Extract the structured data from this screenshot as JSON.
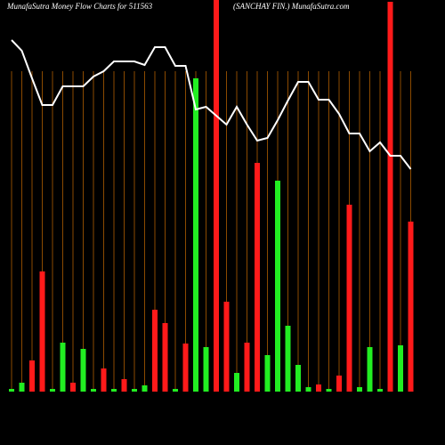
{
  "chart_data": {
    "type": "bar",
    "title": "MunafaSutra  Money Flow  Charts for 511563",
    "subtitle": "(SANCHAY FIN.) MunafaSutra.com",
    "categories": [
      null,
      null,
      null,
      null,
      null,
      null,
      null,
      null,
      null,
      null,
      null,
      null,
      null,
      null,
      null,
      null,
      null,
      null,
      null,
      null,
      null,
      null,
      null,
      null,
      null,
      null,
      null,
      null,
      null,
      null,
      null,
      null,
      null,
      null,
      null,
      null,
      null,
      null,
      null,
      null
    ],
    "ylim": [
      0,
      440
    ],
    "series": [
      {
        "name": null,
        "color": "#ff1a1a",
        "up_color": "#22ee22",
        "direction": [
          "up",
          "up",
          "down",
          "down",
          "up",
          "up",
          "down",
          "up",
          "up",
          "down",
          "up",
          "down",
          "up",
          "up",
          "down",
          "down",
          "up",
          "down",
          "up",
          "up",
          "down",
          "down",
          "up",
          "down",
          "down",
          "up",
          "up",
          "up",
          "up",
          "up",
          "down",
          "up",
          "down",
          "down",
          "up",
          "up",
          "up",
          "down",
          "up",
          "down"
        ],
        "values": [
          3,
          10,
          35,
          135,
          3,
          55,
          10,
          48,
          3,
          26,
          3,
          14,
          3,
          7,
          92,
          77,
          3,
          54,
          352,
          50,
          440,
          101,
          21,
          55,
          257,
          41,
          237,
          74,
          30,
          5,
          8,
          3,
          18,
          210,
          5,
          50,
          3,
          438,
          52,
          191
        ]
      },
      {
        "name": null,
        "color": "#ffffff",
        "type": "line",
        "values": [
          395,
          383,
          352,
          322,
          322,
          343,
          343,
          343,
          354,
          360,
          371,
          371,
          371,
          367,
          387,
          387,
          366,
          366,
          317,
          320,
          310,
          300,
          320,
          300,
          282,
          285,
          305,
          327,
          348,
          348,
          328,
          328,
          312,
          290,
          290,
          270,
          280,
          265,
          265,
          250
        ]
      }
    ],
    "grid": true,
    "grid_color": "#8b4a00"
  }
}
